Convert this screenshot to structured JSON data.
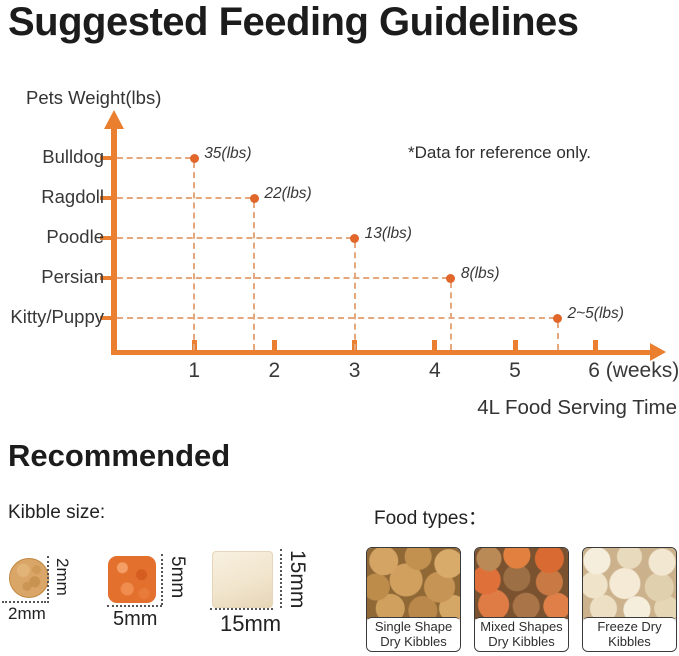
{
  "title": "Suggested Feeding Guidelines",
  "colors": {
    "axis": "#ea7f2f",
    "dot": "#e0662a",
    "dash": "#e4a87c",
    "text": "#383838"
  },
  "chart_data": {
    "type": "scatter",
    "y_axis_title": "Pets Weight(lbs)",
    "note": "*Data for reference only.",
    "xlabel": "4L Food Serving Time",
    "x_ticks": [
      1,
      2,
      3,
      4,
      5,
      6
    ],
    "x_tick_suffix": "(weeks)",
    "xlim": [
      0,
      6.6
    ],
    "categories": [
      "Bulldog",
      "Ragdoll",
      "Poodle",
      "Persian",
      "Kitty/Puppy"
    ],
    "points": [
      {
        "pet": "Bulldog",
        "label": "35(lbs)",
        "weeks": 1
      },
      {
        "pet": "Ragdoll",
        "label": "22(lbs)",
        "weeks": 1.75
      },
      {
        "pet": "Poodle",
        "label": "13(lbs)",
        "weeks": 3
      },
      {
        "pet": "Persian",
        "label": "8(lbs)",
        "weeks": 4.2
      },
      {
        "pet": "Kitty/Puppy",
        "label": "2~5(lbs)",
        "weeks": 5.53
      }
    ]
  },
  "recommended": {
    "heading": "Recommended",
    "kibble_label": "Kibble size:",
    "kibbles": [
      {
        "shape": "round",
        "width_label": "2mm",
        "height_label": "2mm"
      },
      {
        "shape": "square",
        "width_label": "5mm",
        "height_label": "5mm"
      },
      {
        "shape": "cube",
        "width_label": "15mm",
        "height_label": "15mm"
      }
    ],
    "food_types_label": "Food types：",
    "food_types": [
      {
        "line1": "Single Shape",
        "line2": "Dry Kibbles"
      },
      {
        "line1": "Mixed Shapes",
        "line2": "Dry Kibbles"
      },
      {
        "line1": "Freeze Dry",
        "line2": "Kibbles"
      }
    ]
  }
}
